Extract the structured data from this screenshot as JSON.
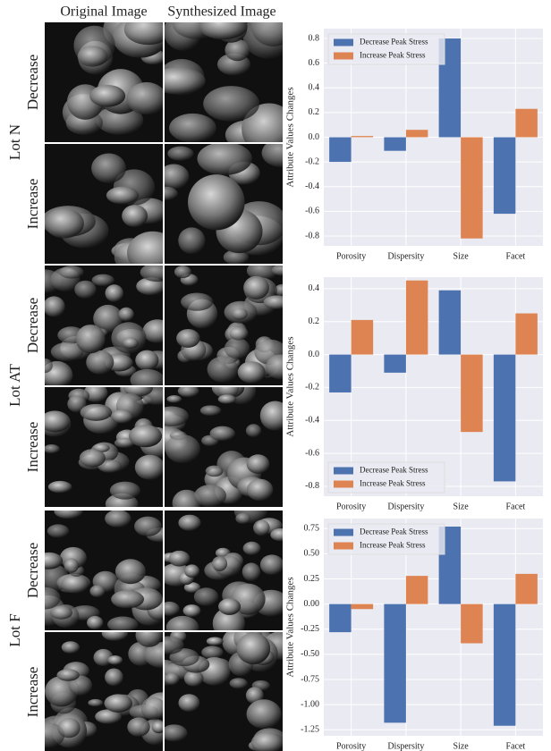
{
  "figure": {
    "column_headers": [
      "Original Image",
      "Synthesized Image"
    ],
    "lots": [
      {
        "label": "Lot N",
        "rows": [
          "Decrease",
          "Increase"
        ]
      },
      {
        "label": "Lot AT",
        "rows": [
          "Decrease",
          "Increase"
        ]
      },
      {
        "label": "Lot F",
        "rows": [
          "Decrease",
          "Increase"
        ]
      }
    ]
  },
  "chart_data": [
    {
      "type": "bar",
      "ylabel": "Attribute Values Changes",
      "categories": [
        "Porosity",
        "Dispersity",
        "Size",
        "Facet"
      ],
      "series": [
        {
          "name": "Decrease Peak Stress",
          "color": "#4c72b0",
          "values": [
            -0.2,
            -0.11,
            0.8,
            -0.62
          ]
        },
        {
          "name": "Increase Peak Stress",
          "color": "#dd8452",
          "values": [
            0.01,
            0.06,
            -0.82,
            0.23
          ]
        }
      ],
      "ylim": [
        -0.88,
        0.88
      ],
      "yticks": [
        -0.8,
        -0.6,
        -0.4,
        -0.2,
        {
          "value": 0,
          "label": "0.0"
        },
        0.2,
        0.4,
        0.6,
        0.8
      ],
      "grid": true,
      "legend": "upper-left"
    },
    {
      "type": "bar",
      "ylabel": "Attribute Values Changes",
      "categories": [
        "Porosity",
        "Dispersity",
        "Size",
        "Facet"
      ],
      "series": [
        {
          "name": "Decrease Peak Stress",
          "color": "#4c72b0",
          "values": [
            -0.23,
            -0.11,
            0.39,
            -0.77
          ]
        },
        {
          "name": "Increase Peak Stress",
          "color": "#dd8452",
          "values": [
            0.21,
            0.45,
            -0.47,
            0.25
          ]
        }
      ],
      "ylim": [
        -0.86,
        0.47
      ],
      "yticks": [
        -0.8,
        -0.6,
        -0.4,
        -0.2,
        {
          "value": 0,
          "label": "0.0"
        },
        0.2,
        0.4
      ],
      "grid": true,
      "legend": "lower-left"
    },
    {
      "type": "bar",
      "ylabel": "Attribute Values Changes",
      "categories": [
        "Porosity",
        "Dispersity",
        "Size",
        "Facet"
      ],
      "series": [
        {
          "name": "Decrease Peak Stress",
          "color": "#4c72b0",
          "values": [
            -0.28,
            -1.18,
            0.77,
            -1.21
          ]
        },
        {
          "name": "Increase Peak Stress",
          "color": "#dd8452",
          "values": [
            -0.05,
            0.28,
            -0.39,
            0.3
          ]
        }
      ],
      "ylim": [
        -1.31,
        0.85
      ],
      "yticks": [
        -1.25,
        {
          "value": -1,
          "label": "-1.00"
        },
        -0.75,
        {
          "value": -0.5,
          "label": "-0.50"
        },
        -0.25,
        {
          "value": 0,
          "label": "0.00"
        },
        0.25,
        {
          "value": 0.5,
          "label": "0.50"
        },
        0.75
      ],
      "grid": true,
      "legend": "upper-left"
    }
  ]
}
